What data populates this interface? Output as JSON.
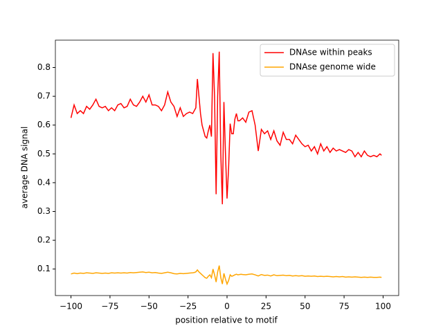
{
  "chart_data": {
    "type": "line",
    "xlabel": "position relative to motif",
    "ylabel": "average DNA signal",
    "x": [
      -100,
      -98,
      -96,
      -94,
      -92,
      -90,
      -88,
      -86,
      -84,
      -82,
      -80,
      -78,
      -76,
      -74,
      -72,
      -70,
      -68,
      -66,
      -64,
      -62,
      -60,
      -58,
      -56,
      -54,
      -52,
      -50,
      -48,
      -46,
      -44,
      -42,
      -40,
      -38,
      -36,
      -34,
      -32,
      -30,
      -28,
      -26,
      -24,
      -22,
      -21,
      -20,
      -19,
      -18,
      -17,
      -16,
      -15,
      -14,
      -13,
      -12,
      -11,
      -10,
      -9,
      -8,
      -7,
      -6,
      -5,
      -4,
      -3,
      -2,
      -1,
      0,
      1,
      2,
      3,
      4,
      5,
      6,
      7,
      8,
      9,
      10,
      12,
      14,
      16,
      18,
      20,
      22,
      24,
      26,
      28,
      30,
      32,
      34,
      36,
      38,
      40,
      42,
      44,
      46,
      48,
      50,
      52,
      54,
      56,
      58,
      60,
      62,
      64,
      66,
      68,
      70,
      72,
      74,
      76,
      78,
      80,
      82,
      84,
      86,
      88,
      90,
      92,
      94,
      96,
      98,
      99
    ],
    "series": [
      {
        "name": "DNAse within peaks",
        "color": "#ff0000",
        "values": [
          0.625,
          0.67,
          0.64,
          0.65,
          0.64,
          0.665,
          0.655,
          0.67,
          0.69,
          0.665,
          0.66,
          0.665,
          0.65,
          0.66,
          0.65,
          0.67,
          0.675,
          0.66,
          0.665,
          0.69,
          0.67,
          0.665,
          0.68,
          0.7,
          0.68,
          0.705,
          0.67,
          0.67,
          0.665,
          0.65,
          0.67,
          0.715,
          0.68,
          0.665,
          0.63,
          0.66,
          0.63,
          0.64,
          0.645,
          0.64,
          0.65,
          0.66,
          0.76,
          0.7,
          0.64,
          0.6,
          0.58,
          0.56,
          0.555,
          0.58,
          0.6,
          0.56,
          0.85,
          0.7,
          0.36,
          0.7,
          0.855,
          0.5,
          0.325,
          0.68,
          0.5,
          0.345,
          0.45,
          0.605,
          0.57,
          0.57,
          0.62,
          0.64,
          0.615,
          0.615,
          0.62,
          0.625,
          0.61,
          0.645,
          0.65,
          0.6,
          0.51,
          0.585,
          0.57,
          0.58,
          0.55,
          0.58,
          0.545,
          0.53,
          0.575,
          0.55,
          0.55,
          0.535,
          0.565,
          0.55,
          0.535,
          0.525,
          0.53,
          0.51,
          0.525,
          0.5,
          0.535,
          0.51,
          0.525,
          0.505,
          0.52,
          0.51,
          0.515,
          0.51,
          0.505,
          0.515,
          0.51,
          0.49,
          0.505,
          0.49,
          0.51,
          0.495,
          0.49,
          0.495,
          0.49,
          0.5,
          0.495
        ]
      },
      {
        "name": "DNAse genome wide",
        "color": "#ffa500",
        "values": [
          0.083,
          0.086,
          0.084,
          0.086,
          0.085,
          0.087,
          0.086,
          0.085,
          0.087,
          0.086,
          0.085,
          0.086,
          0.085,
          0.087,
          0.086,
          0.087,
          0.086,
          0.087,
          0.086,
          0.088,
          0.087,
          0.088,
          0.089,
          0.09,
          0.088,
          0.089,
          0.087,
          0.088,
          0.086,
          0.085,
          0.087,
          0.089,
          0.087,
          0.084,
          0.083,
          0.085,
          0.084,
          0.085,
          0.086,
          0.087,
          0.088,
          0.09,
          0.097,
          0.09,
          0.085,
          0.08,
          0.075,
          0.07,
          0.068,
          0.075,
          0.08,
          0.07,
          0.1,
          0.08,
          0.055,
          0.09,
          0.112,
          0.07,
          0.048,
          0.085,
          0.065,
          0.048,
          0.06,
          0.08,
          0.075,
          0.077,
          0.08,
          0.082,
          0.08,
          0.081,
          0.082,
          0.081,
          0.08,
          0.082,
          0.083,
          0.08,
          0.076,
          0.081,
          0.078,
          0.079,
          0.076,
          0.08,
          0.077,
          0.078,
          0.079,
          0.077,
          0.078,
          0.076,
          0.077,
          0.076,
          0.077,
          0.075,
          0.076,
          0.075,
          0.076,
          0.074,
          0.075,
          0.074,
          0.075,
          0.074,
          0.073,
          0.074,
          0.073,
          0.074,
          0.072,
          0.073,
          0.072,
          0.073,
          0.072,
          0.071,
          0.072,
          0.071,
          0.072,
          0.071,
          0.071,
          0.072,
          0.071
        ]
      }
    ],
    "xlim": [
      -110,
      110
    ],
    "xticks": [
      {
        "value": -100,
        "label": "−100"
      },
      {
        "value": -75,
        "label": "−75"
      },
      {
        "value": -50,
        "label": "−50"
      },
      {
        "value": -25,
        "label": "−25"
      },
      0,
      25,
      50,
      75,
      100
    ],
    "ylim": [
      0.008,
      0.895
    ],
    "yticks": [
      0.1,
      0.2,
      0.3,
      0.4,
      0.5,
      0.6,
      0.7,
      0.8
    ],
    "legend": "upper right"
  }
}
